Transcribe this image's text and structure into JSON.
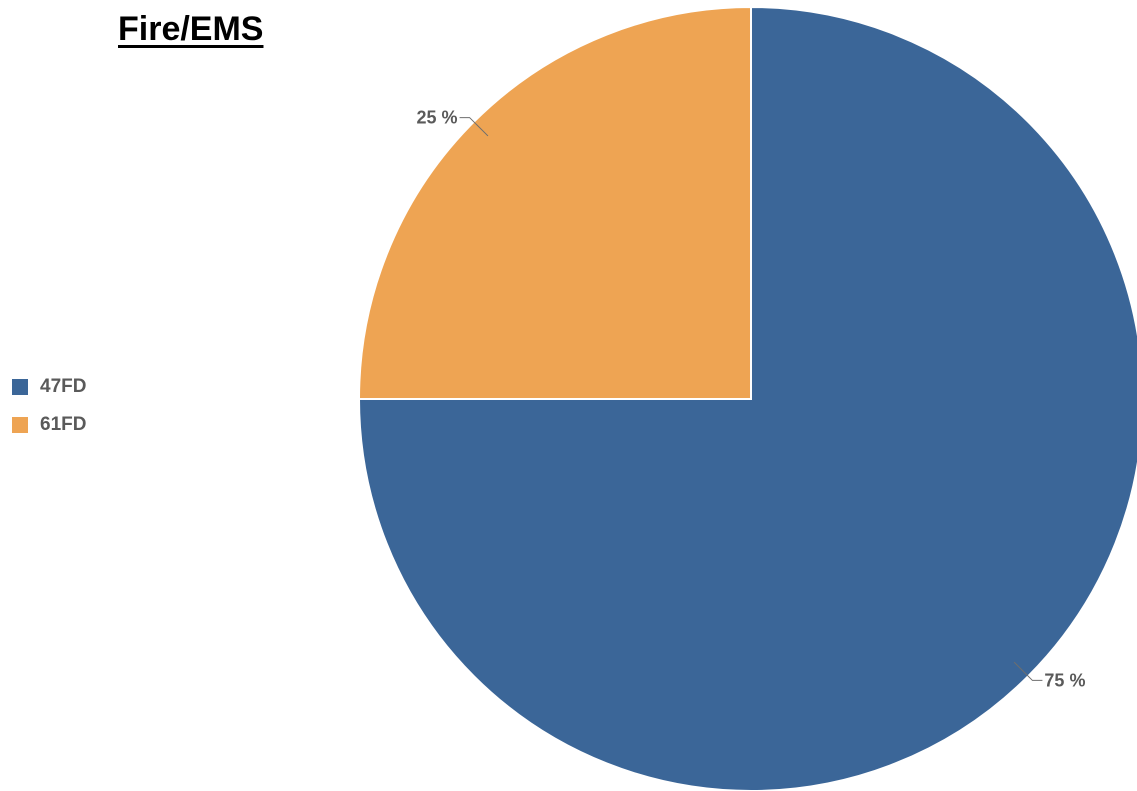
{
  "chart_data": {
    "type": "pie",
    "title": "Fire/EMS",
    "categories": [
      "47FD",
      "61FD"
    ],
    "values": [
      75,
      25
    ],
    "labels": [
      "75 %",
      "25 %"
    ],
    "colors": [
      "#3b6698",
      "#eea453"
    ],
    "legend": {
      "placement": "left",
      "entries": [
        "47FD",
        "61FD"
      ]
    }
  }
}
